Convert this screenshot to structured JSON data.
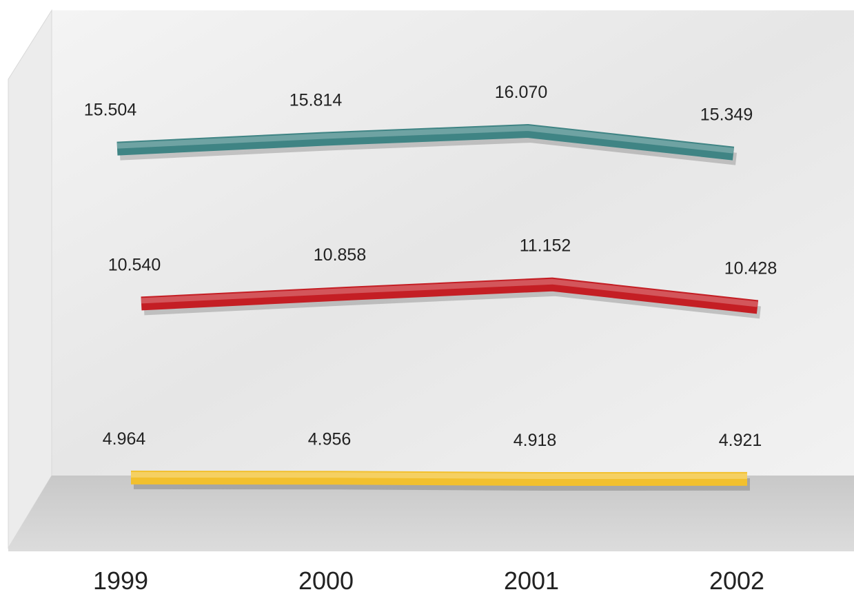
{
  "chart_data": {
    "type": "line",
    "categories": [
      "1999",
      "2000",
      "2001",
      "2002"
    ],
    "series": [
      {
        "color": "#3f8484",
        "values": [
          15.504,
          15.814,
          16.07,
          15.349
        ],
        "value_labels": [
          "15.504",
          "15.814",
          "16.070",
          "15.349"
        ]
      },
      {
        "color": "#c41e24",
        "values": [
          10.54,
          10.858,
          11.152,
          10.428
        ],
        "value_labels": [
          "10.540",
          "10.858",
          "11.152",
          "10.428"
        ]
      },
      {
        "color": "#f2c02e",
        "values": [
          4.964,
          4.956,
          4.918,
          4.921
        ],
        "value_labels": [
          "4.964",
          "4.956",
          "4.918",
          "4.921"
        ]
      }
    ]
  }
}
